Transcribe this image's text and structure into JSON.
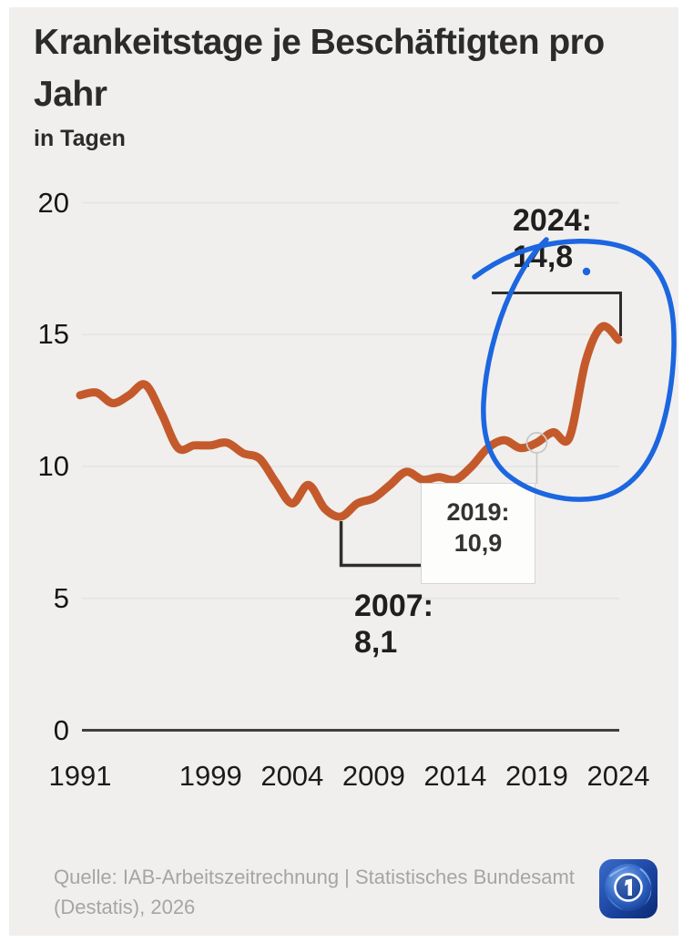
{
  "header": {
    "title": "Krankeitstage je Beschäftigten pro Jahr",
    "subtitle": "in Tagen"
  },
  "chart_data": {
    "type": "line",
    "title": "Krankeitstage je Beschäftigten pro Jahr",
    "ylabel": "in Tagen",
    "x": [
      1991,
      1992,
      1993,
      1994,
      1995,
      1996,
      1997,
      1998,
      1999,
      2000,
      2001,
      2002,
      2003,
      2004,
      2005,
      2006,
      2007,
      2008,
      2009,
      2010,
      2011,
      2012,
      2013,
      2014,
      2015,
      2016,
      2017,
      2018,
      2019,
      2020,
      2021,
      2022,
      2023,
      2024
    ],
    "values": [
      12.7,
      12.8,
      12.4,
      12.7,
      13.1,
      12.0,
      10.7,
      10.8,
      10.8,
      10.9,
      10.5,
      10.3,
      9.4,
      8.6,
      9.3,
      8.4,
      8.1,
      8.6,
      8.8,
      9.3,
      9.8,
      9.5,
      9.6,
      9.5,
      10.0,
      10.7,
      11.0,
      10.7,
      10.9,
      11.3,
      11.1,
      14.0,
      15.3,
      14.8
    ],
    "series_name": "Krankheitstage je Beschäftigten",
    "line_color": "#c45a2b",
    "ylim": [
      0,
      20
    ],
    "y_ticks": [
      20,
      15,
      10,
      5,
      0
    ],
    "x_ticks": [
      1991,
      1999,
      2004,
      2009,
      2014,
      2019,
      2024
    ],
    "grid": "horizontal",
    "legend": "none"
  },
  "annotations": {
    "a2024": {
      "year": 2024,
      "label": "2024:",
      "value": "14,8"
    },
    "a2019": {
      "year": 2019,
      "label": "2019:",
      "value": "10,9"
    },
    "a2007": {
      "year": 2007,
      "label": "2007:",
      "value": "8,1"
    },
    "highlight": {
      "shape": "hand-drawn-circle",
      "color": "#1c66e0",
      "target": "2022-2024 spike"
    }
  },
  "colors": {
    "panel_bg": "#f0efed",
    "line": "#c45a2b",
    "grid": "#e3e3e1",
    "axis": "#3f3f3f",
    "bracket": "#2d2d2d",
    "marker_ring": "#c8c8c6"
  },
  "footer": {
    "source": "Quelle: IAB-Arbeitszeitrechnung | Statistisches Bundesamt (Destatis), 2026"
  }
}
